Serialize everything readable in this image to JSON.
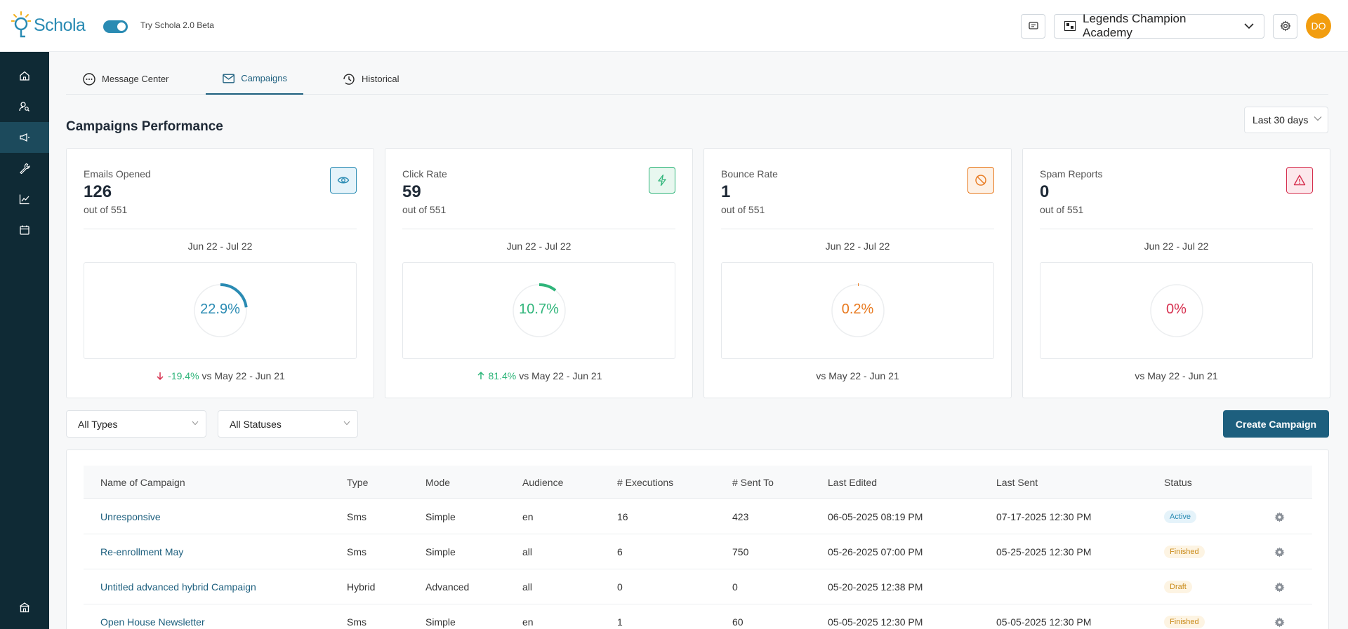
{
  "header": {
    "logo_text": "Schola",
    "beta_label": "Try Schola 2.0 Beta",
    "school_name": "Legends Champion Academy",
    "avatar_initials": "DO"
  },
  "sidebar": {
    "items": [
      {
        "icon": "home-icon"
      },
      {
        "icon": "users-search-icon"
      },
      {
        "icon": "megaphone-icon",
        "active": true
      },
      {
        "icon": "wrench-icon"
      },
      {
        "icon": "chart-line-icon"
      },
      {
        "icon": "calendar-icon"
      },
      {
        "icon": "school-icon"
      }
    ]
  },
  "tabs": [
    {
      "label": "Message Center",
      "icon": "chat-icon"
    },
    {
      "label": "Campaigns",
      "icon": "mail-icon",
      "active": true
    },
    {
      "label": "Historical",
      "icon": "clock-icon"
    }
  ],
  "section_title": "Campaigns Performance",
  "date_range": "Last 30 days",
  "kpis": [
    {
      "label": "Emails Opened",
      "value": "126",
      "sub": "out of 551",
      "range": "Jun 22 - Jul 22",
      "percent_label": "22.9%",
      "percent": 22.9,
      "color": "#2a8bb3",
      "icon": "eye-icon",
      "delta": "-19.4%",
      "delta_dir": "down",
      "delta_color": "#2fb57a",
      "compare": "vs May 22 - Jun 21"
    },
    {
      "label": "Click Rate",
      "value": "59",
      "sub": "out of 551",
      "range": "Jun 22 - Jul 22",
      "percent_label": "10.7%",
      "percent": 10.7,
      "color": "#2fb57a",
      "icon": "bolt-icon",
      "delta": "81.4%",
      "delta_dir": "up",
      "delta_color": "#2fb57a",
      "compare": "vs May 22 - Jun 21"
    },
    {
      "label": "Bounce Rate",
      "value": "1",
      "sub": "out of 551",
      "range": "Jun 22 - Jul 22",
      "percent_label": "0.2%",
      "percent": 0.2,
      "color": "#e8791e",
      "icon": "ban-icon",
      "delta": "",
      "delta_dir": "",
      "delta_color": "",
      "compare": "vs May 22 - Jun 21"
    },
    {
      "label": "Spam Reports",
      "value": "0",
      "sub": "out of 551",
      "range": "Jun 22 - Jul 22",
      "percent_label": "0%",
      "percent": 0,
      "color": "#d6304f",
      "icon": "warning-icon",
      "delta": "",
      "delta_dir": "",
      "delta_color": "",
      "compare": "vs May 22 - Jun 21"
    }
  ],
  "filters": {
    "types": "All Types",
    "statuses": "All Statuses"
  },
  "create_button": "Create Campaign",
  "table": {
    "columns": [
      "Name of Campaign",
      "Type",
      "Mode",
      "Audience",
      "# Executions",
      "# Sent To",
      "Last Edited",
      "Last Sent",
      "Status"
    ],
    "rows": [
      {
        "name": "Unresponsive",
        "type": "Sms",
        "mode": "Simple",
        "audience": "en",
        "executions": "16",
        "sent_to": "423",
        "last_edited": "06-05-2025 08:19 PM",
        "last_sent": "07-17-2025 12:30 PM",
        "status": "Active",
        "status_kind": "active"
      },
      {
        "name": "Re-enrollment May",
        "type": "Sms",
        "mode": "Simple",
        "audience": "all",
        "executions": "6",
        "sent_to": "750",
        "last_edited": "05-26-2025 07:00 PM",
        "last_sent": "05-25-2025 12:30 PM",
        "status": "Finished",
        "status_kind": "finished"
      },
      {
        "name": "Untitled advanced hybrid Campaign",
        "type": "Hybrid",
        "mode": "Advanced",
        "audience": "all",
        "executions": "0",
        "sent_to": "0",
        "last_edited": "05-20-2025 12:38 PM",
        "last_sent": "",
        "status": "Draft",
        "status_kind": "draft"
      },
      {
        "name": "Open House Newsletter",
        "type": "Sms",
        "mode": "Simple",
        "audience": "en",
        "executions": "1",
        "sent_to": "60",
        "last_edited": "05-05-2025 12:30 PM",
        "last_sent": "05-05-2025 12:30 PM",
        "status": "Finished",
        "status_kind": "finished"
      }
    ]
  }
}
